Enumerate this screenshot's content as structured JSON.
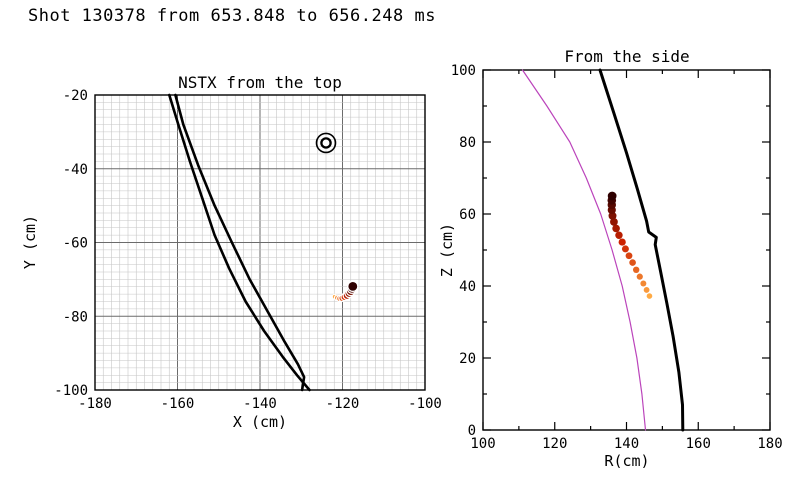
{
  "page_title": "Shot 130378 from 653.848 to 656.248 ms",
  "chart_data": [
    {
      "id": "top_view",
      "type": "scatter",
      "title": "NSTX from the top",
      "xlabel": "X (cm)",
      "ylabel": "Y (cm)",
      "xlim": [
        -180,
        -100
      ],
      "ylim": [
        -100,
        -20
      ],
      "xticks": [
        -180,
        -160,
        -140,
        -120,
        -100
      ],
      "yticks": [
        -100,
        -80,
        -60,
        -40,
        -20
      ],
      "grid": {
        "minor_step": 2,
        "major_step": 20,
        "minor_color": "#c6c6c6",
        "major_color": "#6b6b6b"
      },
      "vessel_walls": {
        "color": "#000000",
        "width": 2.6,
        "lines": [
          [
            [
              -162,
              -20
            ],
            [
              -159.8,
              -28
            ],
            [
              -157,
              -38
            ],
            [
              -154,
              -48
            ],
            [
              -151,
              -58
            ],
            [
              -147.5,
              -67
            ],
            [
              -143.5,
              -76
            ],
            [
              -139,
              -84
            ],
            [
              -134.5,
              -91
            ],
            [
              -131,
              -96
            ],
            [
              -128,
              -100
            ]
          ],
          [
            [
              -160.5,
              -20
            ],
            [
              -158.6,
              -28
            ],
            [
              -155,
              -39
            ],
            [
              -151,
              -50
            ],
            [
              -146.8,
              -60
            ],
            [
              -142.5,
              -70
            ],
            [
              -138,
              -79
            ],
            [
              -134,
              -87
            ],
            [
              -130.8,
              -93
            ],
            [
              -129.3,
              -96.5
            ],
            [
              -129.8,
              -100
            ]
          ]
        ]
      },
      "target_marker": {
        "type": "double-circle",
        "x": -124,
        "y": -33
      },
      "trajectory": {
        "colors": [
          "#ffaa44",
          "#cc2200",
          "#2e0000"
        ],
        "dot_radius": [
          2.4,
          5.0
        ],
        "halo_color": "#ffffff",
        "points": [
          [
            -121.9,
            -74.7
          ],
          [
            -121.3,
            -75.0
          ],
          [
            -120.7,
            -75.2
          ],
          [
            -120.1,
            -75.1
          ],
          [
            -119.5,
            -74.8
          ],
          [
            -118.9,
            -74.4
          ],
          [
            -118.4,
            -73.8
          ],
          [
            -118.0,
            -73.2
          ],
          [
            -117.7,
            -72.5
          ],
          [
            -117.5,
            -71.9
          ]
        ]
      }
    },
    {
      "id": "side_view",
      "type": "scatter",
      "title": "From the side",
      "xlabel": "R(cm)",
      "ylabel": "Z (cm)",
      "xlim": [
        100,
        180
      ],
      "ylim": [
        0,
        100
      ],
      "xticks": [
        100,
        120,
        140,
        160,
        180
      ],
      "yticks": [
        0,
        20,
        40,
        60,
        80,
        100
      ],
      "vessel_walls": {
        "color": "#000000",
        "width": 3,
        "lines": [
          [
            [
              132.6,
              100
            ],
            [
              136.5,
              88
            ],
            [
              140,
              77
            ],
            [
              143,
              67
            ],
            [
              145.6,
              58
            ],
            [
              146.2,
              55
            ],
            [
              148.3,
              53.5
            ],
            [
              148,
              51.5
            ],
            [
              149.5,
              44
            ],
            [
              151.3,
              35
            ],
            [
              153,
              26
            ],
            [
              154.6,
              16
            ],
            [
              155.6,
              7
            ],
            [
              155.7,
              0
            ]
          ]
        ]
      },
      "plasma_boundary": {
        "color": "#bb44bb",
        "width": 1.2,
        "points": [
          [
            111,
            100
          ],
          [
            117.8,
            90
          ],
          [
            124.2,
            80
          ],
          [
            128.8,
            70
          ],
          [
            132.8,
            60
          ],
          [
            136,
            50
          ],
          [
            138.8,
            40
          ],
          [
            141,
            30
          ],
          [
            142.9,
            20
          ],
          [
            144.3,
            10
          ],
          [
            145.3,
            0
          ]
        ]
      },
      "trajectory": {
        "colors": [
          "#ffaa44",
          "#cc2200",
          "#2e0000"
        ],
        "dot_radius": [
          2.8,
          4.4
        ],
        "points": [
          [
            146.4,
            37.2
          ],
          [
            145.6,
            38.9
          ],
          [
            144.7,
            40.7
          ],
          [
            143.7,
            42.6
          ],
          [
            142.7,
            44.5
          ],
          [
            141.7,
            46.5
          ],
          [
            140.7,
            48.4
          ],
          [
            139.7,
            50.3
          ],
          [
            138.8,
            52.2
          ],
          [
            137.9,
            54.1
          ],
          [
            137.1,
            56.0
          ],
          [
            136.5,
            57.8
          ],
          [
            136.1,
            59.5
          ],
          [
            135.9,
            61.1
          ],
          [
            135.9,
            62.5
          ],
          [
            135.9,
            63.8
          ],
          [
            136.0,
            65.0
          ]
        ]
      }
    }
  ]
}
